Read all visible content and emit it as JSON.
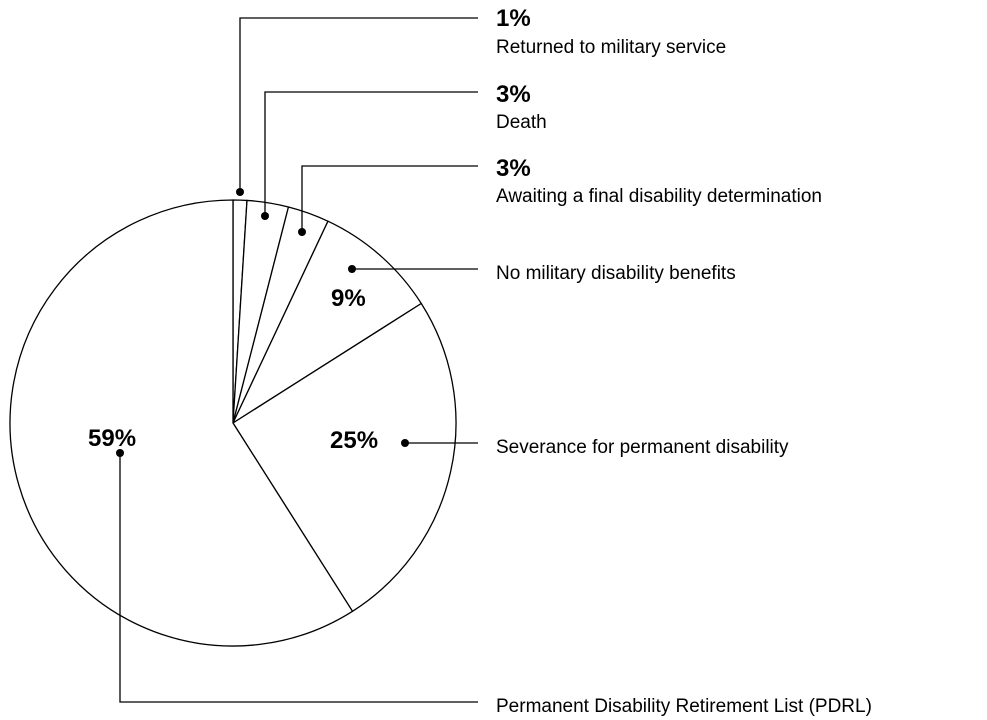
{
  "chart_data": {
    "type": "pie",
    "title": "",
    "start_angle": "top",
    "direction": "clockwise",
    "stroke_color": "#000000",
    "fill_color": "#ffffff",
    "slices": [
      {
        "label": "Returned to military service",
        "value": 1,
        "value_label": "1%"
      },
      {
        "label": "Death",
        "value": 3,
        "value_label": "3%"
      },
      {
        "label": "Awaiting a final disability determination",
        "value": 3,
        "value_label": "3%"
      },
      {
        "label": "No military disability benefits",
        "value": 9,
        "value_label": "9%"
      },
      {
        "label": "Severance for permanent disability",
        "value": 25,
        "value_label": "25%"
      },
      {
        "label": "Permanent Disability Retirement List (PDRL)",
        "value": 59,
        "value_label": "59%"
      }
    ]
  }
}
